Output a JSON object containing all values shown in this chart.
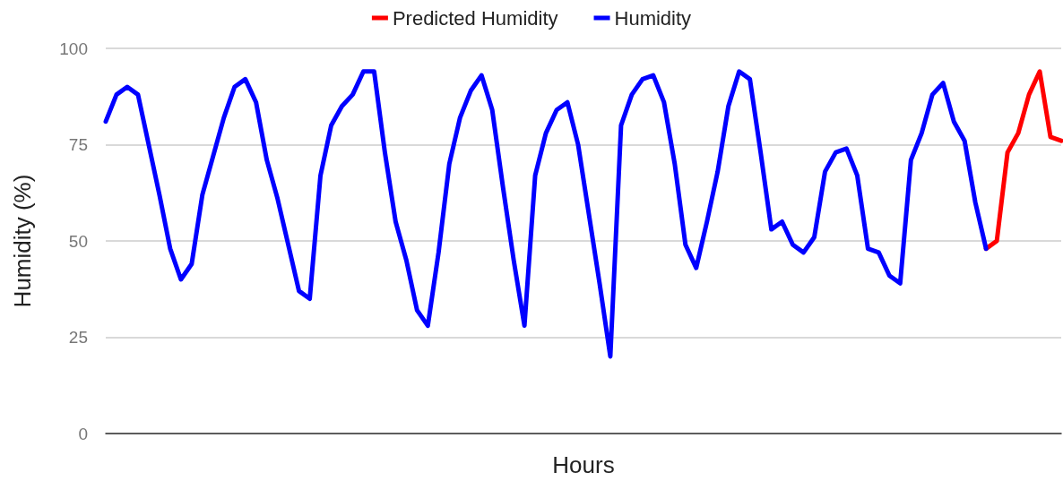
{
  "chart_data": {
    "type": "line",
    "xlabel": "Hours",
    "ylabel": "Humidity (%)",
    "categories": [
      null,
      null,
      null,
      null,
      null,
      null,
      null,
      null,
      null,
      null,
      null,
      null,
      null,
      null,
      null,
      null,
      null,
      null,
      null,
      null,
      null,
      null,
      null,
      null,
      null,
      null,
      null,
      null,
      null,
      null,
      null,
      null,
      null,
      null,
      null,
      null,
      null,
      null,
      null,
      null,
      null,
      null,
      null,
      null,
      null,
      null,
      null,
      null,
      null,
      null,
      null,
      null,
      null,
      null,
      null,
      null,
      null,
      null,
      null,
      null,
      null,
      null,
      null,
      null,
      null,
      null,
      null,
      null,
      null,
      null,
      null,
      null,
      null,
      null,
      null,
      null,
      null,
      null,
      null,
      null,
      null,
      null,
      null,
      null,
      null,
      null,
      null,
      null,
      null,
      null
    ],
    "series": [
      {
        "name": "Predicted Humidity",
        "color": "#ff0000",
        "values": [
          null,
          null,
          null,
          null,
          null,
          null,
          null,
          null,
          null,
          null,
          null,
          null,
          null,
          null,
          null,
          null,
          null,
          null,
          null,
          null,
          null,
          null,
          null,
          null,
          null,
          null,
          null,
          null,
          null,
          null,
          null,
          null,
          null,
          null,
          null,
          null,
          null,
          null,
          null,
          null,
          null,
          null,
          null,
          null,
          null,
          null,
          null,
          null,
          null,
          null,
          null,
          null,
          null,
          null,
          null,
          null,
          null,
          null,
          null,
          null,
          null,
          null,
          null,
          null,
          null,
          null,
          null,
          null,
          null,
          null,
          null,
          null,
          null,
          null,
          null,
          null,
          null,
          null,
          null,
          null,
          null,
          null,
          48,
          50,
          73,
          78,
          88,
          94,
          77,
          76
        ]
      },
      {
        "name": "Humidity",
        "color": "#0000ff",
        "values": [
          81,
          88,
          90,
          88,
          75,
          62,
          48,
          40,
          44,
          62,
          72,
          82,
          90,
          92,
          86,
          71,
          61,
          49,
          37,
          35,
          67,
          80,
          85,
          88,
          94,
          94,
          73,
          55,
          45,
          32,
          28,
          47,
          70,
          82,
          89,
          93,
          84,
          64,
          45,
          28,
          67,
          78,
          84,
          86,
          75,
          57,
          39,
          20,
          80,
          88,
          92,
          93,
          86,
          70,
          49,
          43,
          55,
          68,
          85,
          94,
          92,
          73,
          53,
          55,
          49,
          47,
          51,
          68,
          73,
          74,
          67,
          48,
          47,
          41,
          39,
          71,
          78,
          88,
          91,
          81,
          76,
          60,
          48,
          null,
          null,
          null,
          null,
          null,
          null,
          null
        ]
      }
    ],
    "ylim": [
      0,
      100
    ],
    "yticks": [
      0,
      25,
      50,
      75,
      100
    ],
    "grid": "y",
    "legend": "top",
    "marker": "none",
    "line_style": "solid",
    "tick_labels": "y"
  }
}
